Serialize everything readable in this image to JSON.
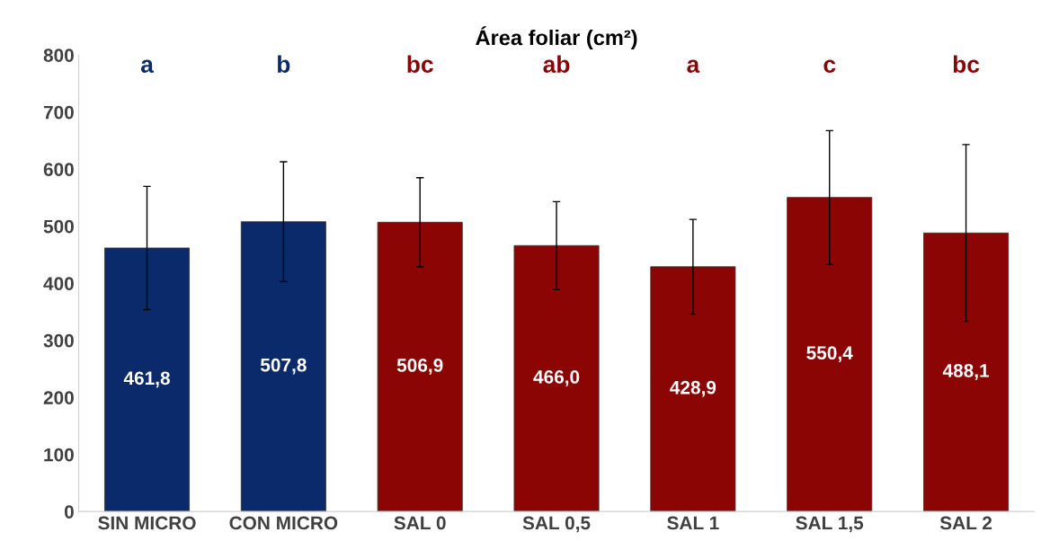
{
  "chart_data": {
    "type": "bar",
    "title": "Área foliar (cm²)",
    "categories": [
      "SIN MICRO",
      "CON MICRO",
      "SAL 0",
      "SAL 0,5",
      "SAL 1",
      "SAL 1,5",
      "SAL 2"
    ],
    "values": [
      461.8,
      507.8,
      506.9,
      466.0,
      428.9,
      550.4,
      488.1
    ],
    "errors": [
      108,
      105,
      78,
      77,
      83,
      117,
      155
    ],
    "value_labels": [
      "461,8",
      "507,8",
      "506,9",
      "466,0",
      "428,9",
      "550,4",
      "488,1"
    ],
    "colors": [
      "#0b2a6b",
      "#0b2a6b",
      "#8b0505",
      "#8b0505",
      "#8b0505",
      "#8b0505",
      "#8b0505"
    ],
    "ylim": [
      0,
      800
    ],
    "yticks": [
      0,
      100,
      200,
      300,
      400,
      500,
      600,
      700,
      800
    ],
    "annotations": [
      "a",
      "b",
      "bc",
      "ab",
      "a",
      "c",
      "bc"
    ]
  }
}
